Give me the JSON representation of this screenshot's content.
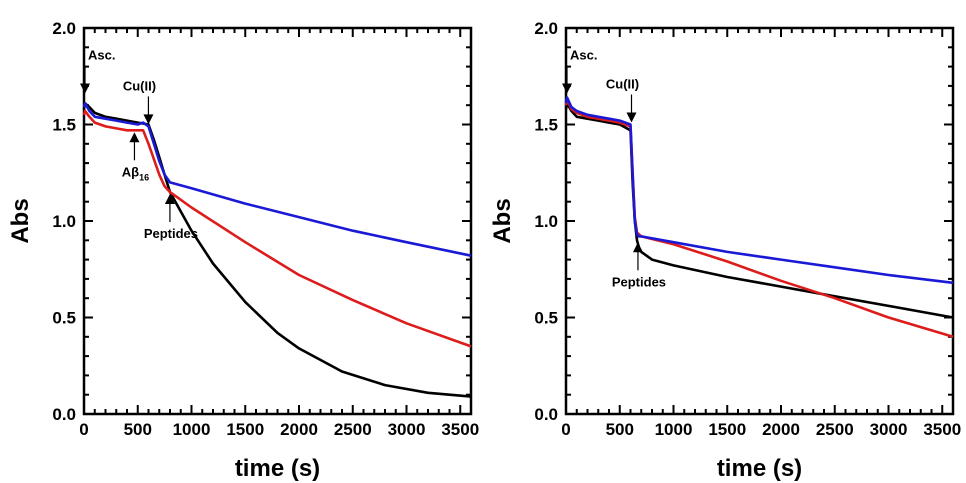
{
  "chart_data": [
    {
      "type": "line",
      "xlabel": "time (s)",
      "ylabel": "Abs",
      "xlim": [
        0,
        3600
      ],
      "ylim": [
        0,
        2.0
      ],
      "xticks": [
        0,
        500,
        1000,
        1500,
        2000,
        2500,
        3000,
        3500
      ],
      "xtick_labels": [
        "0",
        "500",
        "1000",
        "1500",
        "2000",
        "2500",
        "3000",
        "3500"
      ],
      "yticks": [
        0,
        0.5,
        1.0,
        1.5,
        2.0
      ],
      "ytick_labels": [
        "0.0",
        "0.5",
        "1.0",
        "1.5",
        "2.0"
      ],
      "grid": false,
      "series": [
        {
          "color": "#000000",
          "x": [
            0,
            10,
            50,
            100,
            200,
            300,
            400,
            500,
            600,
            650,
            700,
            750,
            800,
            1000,
            1200,
            1500,
            1800,
            2000,
            2400,
            2800,
            3200,
            3600
          ],
          "y": [
            1.58,
            1.61,
            1.59,
            1.56,
            1.54,
            1.53,
            1.52,
            1.51,
            1.5,
            1.42,
            1.33,
            1.24,
            1.15,
            0.95,
            0.78,
            0.58,
            0.42,
            0.34,
            0.22,
            0.15,
            0.11,
            0.09
          ]
        },
        {
          "color": "#dd1c1c",
          "x": [
            0,
            10,
            50,
            100,
            200,
            300,
            400,
            500,
            540,
            550,
            600,
            650,
            700,
            750,
            800,
            1000,
            1500,
            2000,
            2500,
            3000,
            3600
          ],
          "y": [
            1.55,
            1.57,
            1.54,
            1.51,
            1.49,
            1.48,
            1.47,
            1.47,
            1.47,
            1.47,
            1.4,
            1.32,
            1.24,
            1.18,
            1.15,
            1.07,
            0.89,
            0.72,
            0.59,
            0.47,
            0.35
          ]
        },
        {
          "color": "#1a1ad6",
          "x": [
            0,
            10,
            50,
            100,
            200,
            300,
            400,
            500,
            550,
            600,
            650,
            700,
            750,
            800,
            1000,
            1500,
            2000,
            2500,
            3000,
            3600
          ],
          "y": [
            1.59,
            1.61,
            1.57,
            1.54,
            1.53,
            1.52,
            1.51,
            1.5,
            1.51,
            1.49,
            1.4,
            1.31,
            1.24,
            1.2,
            1.17,
            1.09,
            1.02,
            0.95,
            0.89,
            0.82
          ]
        }
      ],
      "annotations": [
        {
          "text": "Asc.",
          "x": 0,
          "y": 1.65,
          "dir": "down"
        },
        {
          "text": "Cu(II)",
          "x": 590,
          "y": 1.49,
          "dir": "down"
        },
        {
          "text": "Aβ",
          "sub": "16",
          "x": 460,
          "y": 1.47,
          "dir": "up"
        },
        {
          "text": "Peptides",
          "x": 790,
          "y": 1.15,
          "dir": "up"
        }
      ]
    },
    {
      "type": "line",
      "xlabel": "time (s)",
      "ylabel": "Abs",
      "xlim": [
        0,
        3600
      ],
      "ylim": [
        0,
        2.0
      ],
      "xticks": [
        0,
        500,
        1000,
        1500,
        2000,
        2500,
        3000,
        3500
      ],
      "xtick_labels": [
        "0",
        "500",
        "1000",
        "1500",
        "2000",
        "2500",
        "3000",
        "3500"
      ],
      "yticks": [
        0,
        0.5,
        1.0,
        1.5,
        2.0
      ],
      "ytick_labels": [
        "0.0",
        "0.5",
        "1.0",
        "1.5",
        "2.0"
      ],
      "grid": false,
      "series": [
        {
          "color": "#000000",
          "x": [
            0,
            10,
            50,
            100,
            200,
            300,
            400,
            500,
            600,
            620,
            640,
            660,
            680,
            700,
            800,
            1000,
            1500,
            2000,
            2500,
            3000,
            3600
          ],
          "y": [
            1.58,
            1.61,
            1.57,
            1.54,
            1.53,
            1.52,
            1.51,
            1.5,
            1.47,
            1.2,
            1.0,
            0.9,
            0.86,
            0.84,
            0.8,
            0.77,
            0.71,
            0.66,
            0.61,
            0.56,
            0.5
          ]
        },
        {
          "color": "#dd1c1c",
          "x": [
            0,
            10,
            50,
            100,
            200,
            300,
            400,
            500,
            600,
            620,
            640,
            660,
            680,
            700,
            1000,
            1500,
            2000,
            2500,
            3000,
            3600
          ],
          "y": [
            1.6,
            1.63,
            1.58,
            1.56,
            1.54,
            1.53,
            1.52,
            1.51,
            1.49,
            1.25,
            1.02,
            0.94,
            0.93,
            0.92,
            0.88,
            0.79,
            0.69,
            0.6,
            0.5,
            0.4
          ]
        },
        {
          "color": "#1a1ad6",
          "x": [
            0,
            10,
            50,
            100,
            200,
            300,
            400,
            500,
            600,
            620,
            640,
            660,
            680,
            700,
            1000,
            1500,
            2000,
            2500,
            3000,
            3600
          ],
          "y": [
            1.61,
            1.64,
            1.59,
            1.57,
            1.55,
            1.54,
            1.53,
            1.52,
            1.5,
            1.25,
            1.0,
            0.93,
            0.92,
            0.92,
            0.89,
            0.84,
            0.8,
            0.76,
            0.72,
            0.68
          ]
        }
      ],
      "annotations": [
        {
          "text": "Asc.",
          "x": 0,
          "y": 1.65,
          "dir": "down"
        },
        {
          "text": "Cu(II)",
          "x": 600,
          "y": 1.5,
          "dir": "down"
        },
        {
          "text": "Peptides",
          "x": 660,
          "y": 0.9,
          "dir": "up"
        }
      ]
    }
  ]
}
